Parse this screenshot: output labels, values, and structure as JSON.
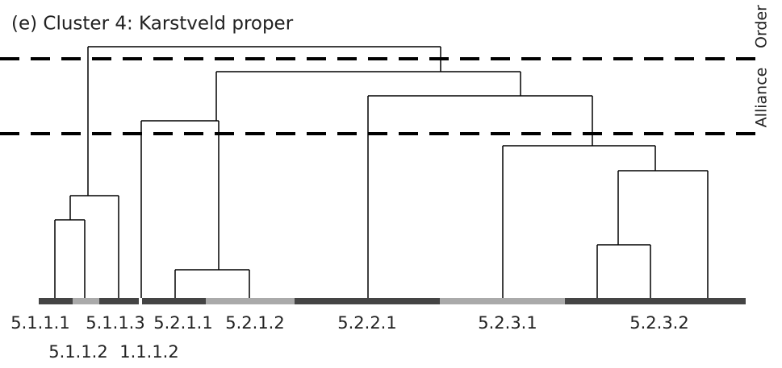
{
  "title": "(e) Cluster 4: Karstveld proper",
  "levels": {
    "order": "Order",
    "alliance": "Alliance"
  },
  "clusters": [
    "5.1.1.1",
    "5.1.1.3",
    "5.2.1.1",
    "5.2.1.2",
    "5.2.2.1",
    "5.2.3.1",
    "5.2.3.2",
    "5.1.1.2",
    "1.1.1.2"
  ]
}
